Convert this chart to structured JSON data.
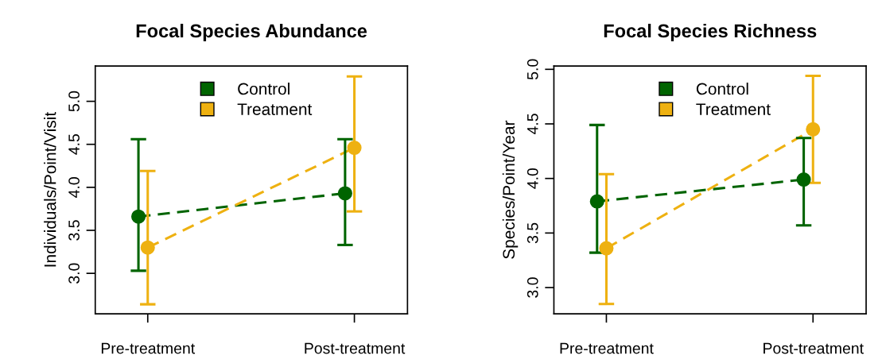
{
  "chart_data": [
    {
      "type": "line",
      "title": "Focal Species Abundance",
      "ylabel": "Individuals/Point/Visit",
      "categories": [
        "Pre-treatment",
        "Post-treatment"
      ],
      "ylim": [
        2.53,
        5.41
      ],
      "yticks": [
        {
          "value": 3,
          "label": "3.0"
        },
        {
          "value": 3.5,
          "label": "3.5"
        },
        {
          "value": 4,
          "label": "4.0"
        },
        {
          "value": 4.5,
          "label": "4.5"
        },
        {
          "value": 5,
          "label": "5.0"
        }
      ],
      "grid": false,
      "legend": "top",
      "marker": "circle",
      "line_style": "dashed",
      "series": [
        {
          "name": "Control",
          "color": "#006400",
          "values": [
            3.66,
            3.93
          ],
          "errors": [
            [
              3.03,
              4.56
            ],
            [
              3.33,
              4.56
            ]
          ]
        },
        {
          "name": "Treatment",
          "color": "#eeb111",
          "values": [
            3.3,
            4.46
          ],
          "errors": [
            [
              2.64,
              4.19
            ],
            [
              3.72,
              5.29
            ]
          ]
        }
      ]
    },
    {
      "type": "line",
      "title": "Focal Species Richness",
      "ylabel": "Species/Point/Year",
      "categories": [
        "Pre-treatment",
        "Post-treatment"
      ],
      "ylim": [
        2.76,
        5.03
      ],
      "yticks": [
        {
          "value": 3,
          "label": "3.0"
        },
        {
          "value": 3.5,
          "label": "3.5"
        },
        {
          "value": 4,
          "label": "4.0"
        },
        {
          "value": 4.5,
          "label": "4.5"
        },
        {
          "value": 5,
          "label": "5.0"
        }
      ],
      "grid": false,
      "legend": "top",
      "marker": "circle",
      "line_style": "dashed",
      "series": [
        {
          "name": "Control",
          "color": "#006400",
          "values": [
            3.79,
            3.99
          ],
          "errors": [
            [
              3.32,
              4.49
            ],
            [
              3.57,
              4.37
            ]
          ]
        },
        {
          "name": "Treatment",
          "color": "#eeb111",
          "values": [
            3.36,
            4.45
          ],
          "errors": [
            [
              2.85,
              4.04
            ],
            [
              3.96,
              4.94
            ]
          ]
        }
      ]
    }
  ]
}
